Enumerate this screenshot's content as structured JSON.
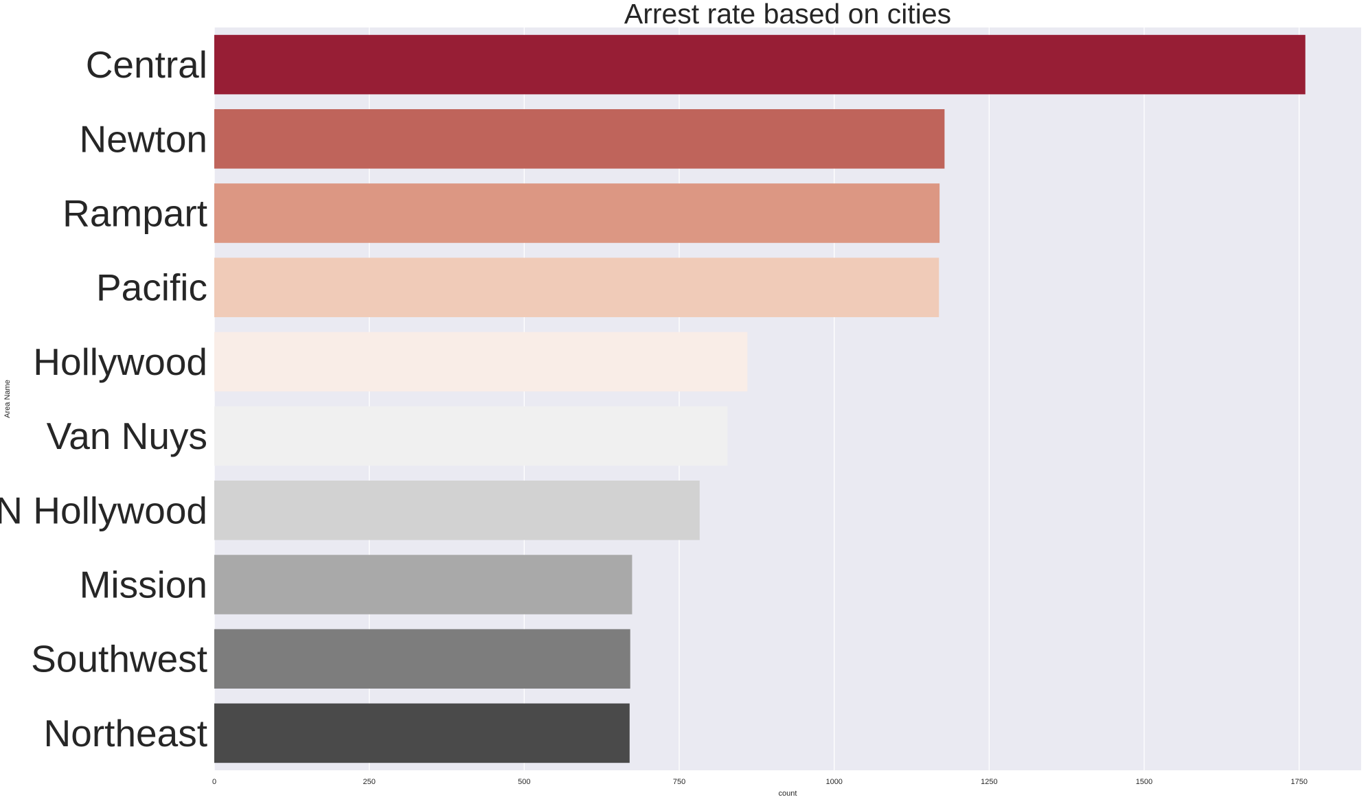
{
  "chart_data": {
    "type": "bar",
    "orientation": "horizontal",
    "title": "Arrest rate based on cities",
    "xlabel": "count",
    "ylabel": "Area Name",
    "categories": [
      "Central",
      "Newton",
      "Rampart",
      "Pacific",
      "Hollywood",
      "Van Nuys",
      "N Hollywood",
      "Mission",
      "Southwest",
      "Northeast"
    ],
    "values": [
      1760,
      1178,
      1170,
      1169,
      860,
      828,
      783,
      674,
      671,
      670
    ],
    "colors": [
      "#971e35",
      "#bf645b",
      "#dc9783",
      "#f0cbb8",
      "#f9ede7",
      "#f0f0f0",
      "#d2d2d2",
      "#a9a9a9",
      "#7d7d7d",
      "#4a4a4a"
    ],
    "xlim": [
      0,
      1850
    ],
    "xticks": [
      0,
      250,
      500,
      750,
      1000,
      1250,
      1500,
      1750
    ],
    "grid": true,
    "background": "#eaeaf2"
  }
}
